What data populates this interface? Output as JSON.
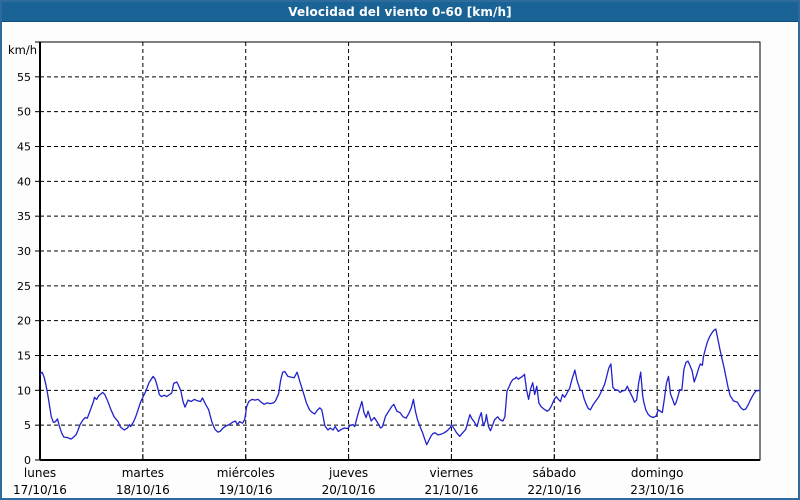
{
  "window": {
    "title": "Velocidad del viento 0-60 [km/h]"
  },
  "colors": {
    "titlebar_bg": "#1a6397",
    "titlebar_text": "#ffffff",
    "frame_border": "#2c6b9c",
    "background": "#fcfdfc",
    "plot_background": "#ffffff",
    "grid": "#000000",
    "axis": "#000000",
    "line": "#2222cc"
  },
  "chart_data": {
    "type": "line",
    "title": "Velocidad del viento 0-60 [km/h]",
    "xlabel": "",
    "ylabel": "km/h",
    "ylim": [
      0,
      60
    ],
    "ytick_step": 5,
    "yticks": [
      0,
      5,
      10,
      15,
      20,
      25,
      30,
      35,
      40,
      45,
      50,
      55
    ],
    "grid": "dashed",
    "legend": "none",
    "x_axis": {
      "unit": "days",
      "range_days": [
        0,
        7
      ],
      "days": [
        {
          "name": "lunes",
          "date": "17/10/16"
        },
        {
          "name": "martes",
          "date": "18/10/16"
        },
        {
          "name": "miércoles",
          "date": "19/10/16"
        },
        {
          "name": "jueves",
          "date": "20/10/16"
        },
        {
          "name": "viernes",
          "date": "21/10/16"
        },
        {
          "name": "sábado",
          "date": "22/10/16"
        },
        {
          "name": "domingo",
          "date": "23/10/16"
        }
      ]
    },
    "series": [
      {
        "name": "Velocidad del viento [km/h]",
        "color": "#2222cc",
        "points": [
          [
            0,
            12.3
          ],
          [
            0.02,
            12.6
          ],
          [
            0.04,
            11.9
          ],
          [
            0.06,
            10.6
          ],
          [
            0.08,
            9
          ],
          [
            0.11,
            6.2
          ],
          [
            0.13,
            5.4
          ],
          [
            0.15,
            5.5
          ],
          [
            0.17,
            5.9
          ],
          [
            0.19,
            4.8
          ],
          [
            0.21,
            3.9
          ],
          [
            0.23,
            3.3
          ],
          [
            0.27,
            3.2
          ],
          [
            0.3,
            3
          ],
          [
            0.32,
            3.2
          ],
          [
            0.35,
            3.6
          ],
          [
            0.37,
            4.3
          ],
          [
            0.39,
            5.1
          ],
          [
            0.42,
            5.8
          ],
          [
            0.44,
            6.1
          ],
          [
            0.46,
            6
          ],
          [
            0.48,
            6.8
          ],
          [
            0.52,
            8.4
          ],
          [
            0.53,
            9
          ],
          [
            0.55,
            8.7
          ],
          [
            0.57,
            9.2
          ],
          [
            0.61,
            9.7
          ],
          [
            0.63,
            9.4
          ],
          [
            0.66,
            8.4
          ],
          [
            0.69,
            7.2
          ],
          [
            0.72,
            6.2
          ],
          [
            0.76,
            5.5
          ],
          [
            0.78,
            4.8
          ],
          [
            0.8,
            4.5
          ],
          [
            0.82,
            4.3
          ],
          [
            0.85,
            4.6
          ],
          [
            0.87,
            5.1
          ],
          [
            0.88,
            4.8
          ],
          [
            0.91,
            5.5
          ],
          [
            0.93,
            6.2
          ],
          [
            0.96,
            7.5
          ],
          [
            0.98,
            8.4
          ],
          [
            1,
            9
          ],
          [
            1.03,
            9.9
          ],
          [
            1.06,
            11.1
          ],
          [
            1.1,
            12
          ],
          [
            1.12,
            11.6
          ],
          [
            1.14,
            10.6
          ],
          [
            1.16,
            9.4
          ],
          [
            1.18,
            9.1
          ],
          [
            1.21,
            9.3
          ],
          [
            1.23,
            9.1
          ],
          [
            1.26,
            9.4
          ],
          [
            1.28,
            9.6
          ],
          [
            1.3,
            11
          ],
          [
            1.33,
            11.2
          ],
          [
            1.35,
            10.6
          ],
          [
            1.37,
            9.9
          ],
          [
            1.39,
            8.4
          ],
          [
            1.41,
            7.6
          ],
          [
            1.44,
            8.6
          ],
          [
            1.47,
            8.4
          ],
          [
            1.5,
            8.7
          ],
          [
            1.53,
            8.5
          ],
          [
            1.56,
            8.4
          ],
          [
            1.58,
            8.9
          ],
          [
            1.61,
            8
          ],
          [
            1.64,
            7.2
          ],
          [
            1.67,
            5.5
          ],
          [
            1.7,
            4.4
          ],
          [
            1.73,
            4
          ],
          [
            1.75,
            4.1
          ],
          [
            1.78,
            4.6
          ],
          [
            1.81,
            4.9
          ],
          [
            1.84,
            5.1
          ],
          [
            1.87,
            5.4
          ],
          [
            1.9,
            5.6
          ],
          [
            1.92,
            5.1
          ],
          [
            1.94,
            5.5
          ],
          [
            1.97,
            5.3
          ],
          [
            1.99,
            5.8
          ],
          [
            2.01,
            7.7
          ],
          [
            2.03,
            8.4
          ],
          [
            2.06,
            8.7
          ],
          [
            2.09,
            8.6
          ],
          [
            2.12,
            8.7
          ],
          [
            2.15,
            8.3
          ],
          [
            2.18,
            8
          ],
          [
            2.21,
            8.2
          ],
          [
            2.24,
            8.1
          ],
          [
            2.27,
            8.2
          ],
          [
            2.29,
            8.5
          ],
          [
            2.32,
            9.5
          ],
          [
            2.34,
            11.5
          ],
          [
            2.36,
            12.6
          ],
          [
            2.38,
            12.7
          ],
          [
            2.41,
            12
          ],
          [
            2.44,
            11.9
          ],
          [
            2.47,
            11.8
          ],
          [
            2.5,
            12.6
          ],
          [
            2.53,
            11.1
          ],
          [
            2.56,
            9.7
          ],
          [
            2.59,
            8.2
          ],
          [
            2.62,
            7.2
          ],
          [
            2.64,
            6.9
          ],
          [
            2.67,
            6.6
          ],
          [
            2.7,
            7.2
          ],
          [
            2.72,
            7.5
          ],
          [
            2.74,
            7.2
          ],
          [
            2.77,
            4.9
          ],
          [
            2.8,
            4.3
          ],
          [
            2.82,
            4.6
          ],
          [
            2.85,
            4.3
          ],
          [
            2.87,
            4.8
          ],
          [
            2.9,
            4.1
          ],
          [
            2.93,
            4.4
          ],
          [
            2.96,
            4.6
          ],
          [
            2.99,
            4.5
          ],
          [
            3.01,
            4.9
          ],
          [
            3.04,
            5.1
          ],
          [
            3.06,
            4.8
          ],
          [
            3.09,
            6.5
          ],
          [
            3.11,
            7.5
          ],
          [
            3.13,
            8.4
          ],
          [
            3.15,
            6.8
          ],
          [
            3.17,
            6.1
          ],
          [
            3.19,
            7
          ],
          [
            3.22,
            5.6
          ],
          [
            3.25,
            6.1
          ],
          [
            3.28,
            5.4
          ],
          [
            3.31,
            4.6
          ],
          [
            3.33,
            4.8
          ],
          [
            3.36,
            6.3
          ],
          [
            3.39,
            7
          ],
          [
            3.42,
            7.7
          ],
          [
            3.44,
            8
          ],
          [
            3.47,
            7
          ],
          [
            3.5,
            6.8
          ],
          [
            3.53,
            6.2
          ],
          [
            3.56,
            6
          ],
          [
            3.59,
            6.8
          ],
          [
            3.61,
            7.5
          ],
          [
            3.63,
            8.7
          ],
          [
            3.65,
            7
          ],
          [
            3.67,
            5.8
          ],
          [
            3.68,
            5.4
          ],
          [
            3.7,
            4.6
          ],
          [
            3.72,
            3.9
          ],
          [
            3.74,
            3
          ],
          [
            3.76,
            2.2
          ],
          [
            3.78,
            2.8
          ],
          [
            3.8,
            3.4
          ],
          [
            3.82,
            3.8
          ],
          [
            3.84,
            3.9
          ],
          [
            3.87,
            3.6
          ],
          [
            3.9,
            3.7
          ],
          [
            3.93,
            3.9
          ],
          [
            3.96,
            4.2
          ],
          [
            3.99,
            4.7
          ],
          [
            4,
            5.1
          ],
          [
            4.03,
            4.4
          ],
          [
            4.05,
            3.9
          ],
          [
            4.08,
            3.4
          ],
          [
            4.11,
            3.9
          ],
          [
            4.14,
            4.4
          ],
          [
            4.16,
            5.5
          ],
          [
            4.18,
            6.5
          ],
          [
            4.2,
            5.9
          ],
          [
            4.22,
            5.5
          ],
          [
            4.25,
            4.8
          ],
          [
            4.27,
            6
          ],
          [
            4.29,
            6.8
          ],
          [
            4.31,
            4.9
          ],
          [
            4.33,
            5.6
          ],
          [
            4.34,
            6.5
          ],
          [
            4.36,
            4.8
          ],
          [
            4.38,
            4.2
          ],
          [
            4.4,
            5
          ],
          [
            4.42,
            5.8
          ],
          [
            4.45,
            6.2
          ],
          [
            4.47,
            5.8
          ],
          [
            4.5,
            5.6
          ],
          [
            4.52,
            6.2
          ],
          [
            4.54,
            9.9
          ],
          [
            4.56,
            10.5
          ],
          [
            4.58,
            11.2
          ],
          [
            4.6,
            11.6
          ],
          [
            4.62,
            11.7
          ],
          [
            4.63,
            11.9
          ],
          [
            4.65,
            11.6
          ],
          [
            4.67,
            11.8
          ],
          [
            4.69,
            12
          ],
          [
            4.71,
            12.3
          ],
          [
            4.73,
            10.1
          ],
          [
            4.75,
            8.7
          ],
          [
            4.77,
            10.2
          ],
          [
            4.79,
            11.1
          ],
          [
            4.81,
            9.4
          ],
          [
            4.83,
            10.6
          ],
          [
            4.85,
            8.2
          ],
          [
            4.87,
            7.7
          ],
          [
            4.9,
            7.3
          ],
          [
            4.93,
            7
          ],
          [
            4.95,
            7.2
          ],
          [
            4.97,
            7.7
          ],
          [
            5,
            8.7
          ],
          [
            5.02,
            9.1
          ],
          [
            5.04,
            8.7
          ],
          [
            5.06,
            8.4
          ],
          [
            5.08,
            9.4
          ],
          [
            5.1,
            9
          ],
          [
            5.12,
            9.5
          ],
          [
            5.15,
            10.3
          ],
          [
            5.17,
            11.5
          ],
          [
            5.2,
            12.9
          ],
          [
            5.22,
            11.5
          ],
          [
            5.25,
            10.1
          ],
          [
            5.27,
            9.9
          ],
          [
            5.29,
            8.8
          ],
          [
            5.31,
            8
          ],
          [
            5.33,
            7.4
          ],
          [
            5.35,
            7.2
          ],
          [
            5.38,
            8
          ],
          [
            5.4,
            8.4
          ],
          [
            5.43,
            9
          ],
          [
            5.46,
            9.9
          ],
          [
            5.49,
            10.9
          ],
          [
            5.51,
            12
          ],
          [
            5.53,
            13.2
          ],
          [
            5.55,
            13.8
          ],
          [
            5.57,
            10.4
          ],
          [
            5.59,
            10.1
          ],
          [
            5.62,
            10
          ],
          [
            5.64,
            9.7
          ],
          [
            5.66,
            9.9
          ],
          [
            5.69,
            10
          ],
          [
            5.71,
            10.6
          ],
          [
            5.73,
            9.9
          ],
          [
            5.76,
            9
          ],
          [
            5.78,
            8.3
          ],
          [
            5.8,
            8.6
          ],
          [
            5.82,
            11
          ],
          [
            5.84,
            12.6
          ],
          [
            5.86,
            9.2
          ],
          [
            5.87,
            8.3
          ],
          [
            5.89,
            7.2
          ],
          [
            5.91,
            6.6
          ],
          [
            5.93,
            6.3
          ],
          [
            5.96,
            6.1
          ],
          [
            5.99,
            6.3
          ],
          [
            6.01,
            7.2
          ],
          [
            6.03,
            7
          ],
          [
            6.05,
            6.8
          ],
          [
            6.07,
            8.7
          ],
          [
            6.09,
            11
          ],
          [
            6.11,
            12
          ],
          [
            6.13,
            9.5
          ],
          [
            6.15,
            8.7
          ],
          [
            6.17,
            7.9
          ],
          [
            6.18,
            8.1
          ],
          [
            6.2,
            9
          ],
          [
            6.22,
            10.1
          ],
          [
            6.24,
            10
          ],
          [
            6.26,
            13
          ],
          [
            6.28,
            14
          ],
          [
            6.3,
            14.2
          ],
          [
            6.32,
            13.5
          ],
          [
            6.34,
            12.8
          ],
          [
            6.36,
            11.2
          ],
          [
            6.38,
            12
          ],
          [
            6.4,
            13
          ],
          [
            6.42,
            13.8
          ],
          [
            6.44,
            13.6
          ],
          [
            6.45,
            14.8
          ],
          [
            6.47,
            16
          ],
          [
            6.49,
            17
          ],
          [
            6.51,
            17.7
          ],
          [
            6.53,
            18.2
          ],
          [
            6.55,
            18.6
          ],
          [
            6.57,
            18.8
          ],
          [
            6.59,
            17.4
          ],
          [
            6.61,
            15.9
          ],
          [
            6.63,
            14.6
          ],
          [
            6.65,
            13.3
          ],
          [
            6.67,
            11.8
          ],
          [
            6.69,
            10.4
          ],
          [
            6.71,
            9.2
          ],
          [
            6.73,
            8.8
          ],
          [
            6.74,
            8.5
          ],
          [
            6.76,
            8.4
          ],
          [
            6.78,
            8.3
          ],
          [
            6.8,
            7.8
          ],
          [
            6.82,
            7.4
          ],
          [
            6.84,
            7.2
          ],
          [
            6.86,
            7.3
          ],
          [
            6.88,
            7.8
          ],
          [
            6.9,
            8.4
          ],
          [
            6.92,
            9
          ],
          [
            6.94,
            9.5
          ],
          [
            6.96,
            9.9
          ],
          [
            7,
            10
          ]
        ]
      }
    ]
  }
}
